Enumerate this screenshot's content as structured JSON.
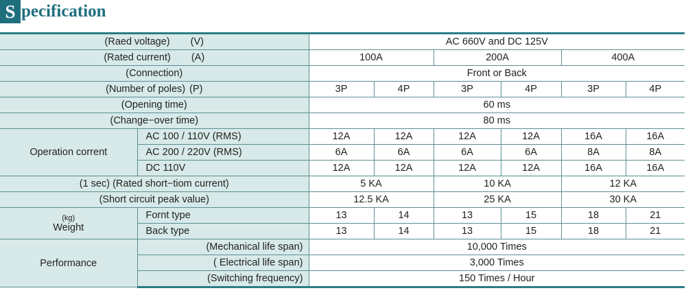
{
  "title": {
    "initial": "S",
    "rest": "pecification"
  },
  "rows": {
    "rated_voltage": {
      "label": "(Raed voltage)",
      "unit": "(V)",
      "value": "AC 660V and DC 125V"
    },
    "rated_current": {
      "label": "(Rated current)",
      "unit": "(A)",
      "values": [
        "100A",
        "200A",
        "400A"
      ]
    },
    "connection": {
      "label": "(Connection)",
      "value": "Front or Back"
    },
    "poles": {
      "label": "(Number of poles)",
      "unit": "(P)",
      "values": [
        "3P",
        "4P",
        "3P",
        "4P",
        "3P",
        "4P"
      ]
    },
    "opening_time": {
      "label": "(Opening time)",
      "value": "60 ms"
    },
    "changeover_time": {
      "label": "(Change−over time)",
      "value": "80 ms"
    },
    "operation_current": {
      "label": "Operation corrent",
      "sub": [
        {
          "label": "AC 100 / 110V (RMS)",
          "values": [
            "12A",
            "12A",
            "12A",
            "12A",
            "16A",
            "16A"
          ]
        },
        {
          "label": "AC 200 / 220V (RMS)",
          "values": [
            "6A",
            "6A",
            "6A",
            "6A",
            "8A",
            "8A"
          ]
        },
        {
          "label": "DC 110V",
          "values": [
            "12A",
            "12A",
            "12A",
            "12A",
            "16A",
            "16A"
          ]
        }
      ]
    },
    "short_time": {
      "label": "(1 sec) (Rated short−tiom current)",
      "values": [
        "5 KA",
        "10 KA",
        "12 KA"
      ]
    },
    "short_peak": {
      "label": "(Short circuit peak value)",
      "values": [
        "12.5 KA",
        "25 KA",
        "30 KA"
      ]
    },
    "weight": {
      "unit": "(kg)",
      "label": "Weight",
      "sub": [
        {
          "label": "Fornt type",
          "values": [
            "13",
            "14",
            "13",
            "15",
            "18",
            "21"
          ]
        },
        {
          "label": "Back type",
          "values": [
            "13",
            "14",
            "13",
            "15",
            "18",
            "21"
          ]
        }
      ]
    },
    "performance": {
      "label": "Performance",
      "sub": [
        {
          "label": "(Mechanical life span)",
          "value": "10,000 Times"
        },
        {
          "label": "( Electrical life span)",
          "value": "3,000 Times"
        },
        {
          "label": "(Switching frequency)",
          "value": "150 Times / Hour"
        }
      ]
    }
  },
  "colors": {
    "accent": "#1f6f7f",
    "label_bg": "#d7e9e8",
    "border": "#5b8e92"
  }
}
